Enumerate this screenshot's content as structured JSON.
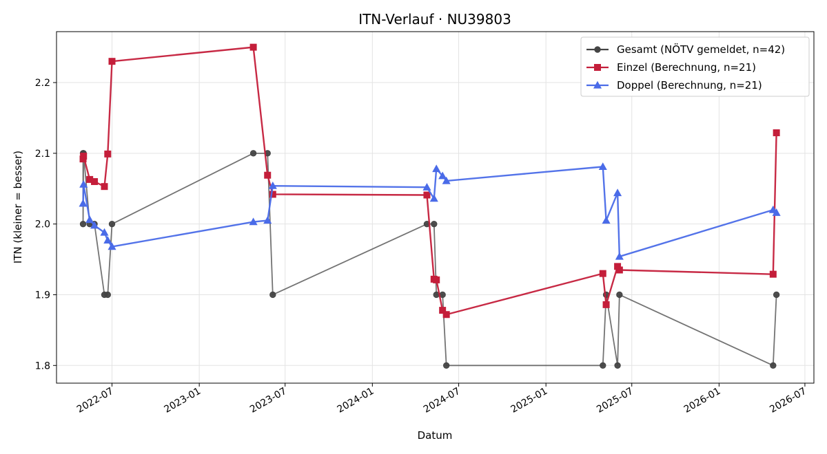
{
  "chart_data": {
    "type": "line",
    "title": "ITN-Verlauf · NU39803",
    "xlabel": "Datum",
    "ylabel": "ITN  (kleiner = besser)",
    "x_type": "date",
    "xlim": [
      "2022-03-06",
      "2026-07-20"
    ],
    "ylim": [
      1.775,
      2.272
    ],
    "x_ticks": [
      "2022-07-01",
      "2023-01-01",
      "2023-07-01",
      "2024-01-01",
      "2024-07-01",
      "2025-01-01",
      "2025-07-01",
      "2026-01-01",
      "2026-07-01"
    ],
    "x_tick_labels": [
      "2022-07",
      "2023-01",
      "2023-07",
      "2024-01",
      "2024-07",
      "2025-01",
      "2025-07",
      "2026-01",
      "2026-07"
    ],
    "y_ticks": [
      1.8,
      1.9,
      2.0,
      2.1,
      2.2
    ],
    "y_tick_labels": [
      "1.8",
      "1.9",
      "2.0",
      "2.1",
      "2.2"
    ],
    "grid": true,
    "legend_position": "top-right",
    "series": [
      {
        "name": "Gesamt (NÖTV gemeldet, n=42)",
        "color": "#444444",
        "marker": "circle",
        "x": [
          "2022-05-01",
          "2022-05-01",
          "2022-05-02",
          "2022-05-15",
          "2022-05-25",
          "2022-06-15",
          "2022-06-22",
          "2022-07-01",
          "2023-04-25",
          "2023-05-25",
          "2023-06-05",
          "2024-04-25",
          "2024-05-10",
          "2024-05-15",
          "2024-05-28",
          "2024-06-05",
          "2025-05-01",
          "2025-05-08",
          "2025-06-01",
          "2025-06-05",
          "2026-04-25",
          "2026-05-02"
        ],
        "y": [
          2.1,
          2.0,
          2.1,
          2.0,
          2.0,
          1.9,
          1.9,
          2.0,
          2.1,
          2.1,
          1.9,
          2.0,
          2.0,
          1.9,
          1.9,
          1.8,
          1.8,
          1.9,
          1.8,
          1.9,
          1.8,
          1.9
        ]
      },
      {
        "name": "Einzel (Berechnung, n=21)",
        "color": "#c41e3a",
        "marker": "square",
        "x": [
          "2022-05-01",
          "2022-05-02",
          "2022-05-15",
          "2022-05-25",
          "2022-06-15",
          "2022-06-22",
          "2022-07-01",
          "2023-04-25",
          "2023-05-25",
          "2023-06-05",
          "2024-04-25",
          "2024-05-10",
          "2024-05-15",
          "2024-05-28",
          "2024-06-05",
          "2025-05-01",
          "2025-05-08",
          "2025-06-01",
          "2025-06-05",
          "2026-04-25",
          "2026-05-02"
        ],
        "y": [
          2.092,
          2.096,
          2.063,
          2.06,
          2.053,
          2.099,
          2.23,
          2.25,
          2.069,
          2.042,
          2.041,
          1.922,
          1.921,
          1.878,
          1.872,
          1.93,
          1.886,
          1.94,
          1.935,
          1.929,
          2.129
        ]
      },
      {
        "name": "Doppel (Berechnung, n=21)",
        "color": "#4a6be8",
        "marker": "triangle",
        "x": [
          "2022-05-01",
          "2022-05-02",
          "2022-05-15",
          "2022-05-25",
          "2022-06-15",
          "2022-06-22",
          "2022-07-01",
          "2023-04-25",
          "2023-05-25",
          "2023-06-05",
          "2024-04-25",
          "2024-05-10",
          "2024-05-15",
          "2024-05-28",
          "2024-06-05",
          "2025-05-01",
          "2025-05-08",
          "2025-06-01",
          "2025-06-05",
          "2026-04-25",
          "2026-05-02"
        ],
        "y": [
          2.029,
          2.056,
          2.006,
          1.998,
          1.988,
          1.977,
          1.968,
          2.003,
          2.005,
          2.054,
          2.052,
          2.036,
          2.078,
          2.068,
          2.061,
          2.081,
          2.005,
          2.044,
          1.954,
          2.02,
          2.016
        ]
      }
    ]
  }
}
